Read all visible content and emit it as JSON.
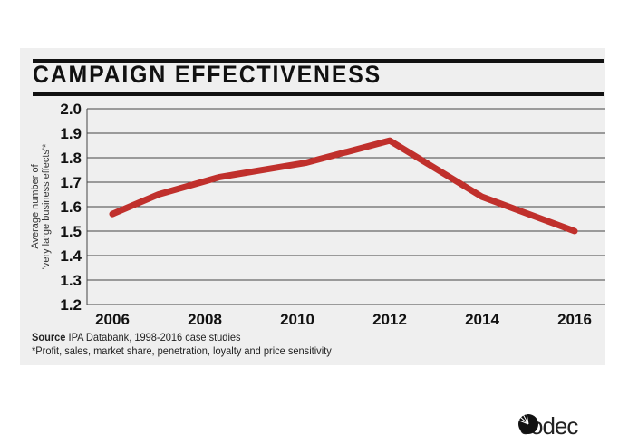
{
  "chart_data": {
    "type": "line",
    "title": "CAMPAIGN EFFECTIVENESS",
    "ylabel": [
      "Average number of",
      "'very large business effects'*"
    ],
    "xlabel": "",
    "x_ticks": [
      "2006",
      "2008",
      "2010",
      "2012",
      "2014",
      "2016"
    ],
    "y_ticks": [
      "2.0",
      "1.9",
      "1.8",
      "1.7",
      "1.6",
      "1.5",
      "1.4",
      "1.3",
      "1.2"
    ],
    "ylim": [
      1.2,
      2.0
    ],
    "xlim": [
      2006,
      2016
    ],
    "grid": "horizontal",
    "line_color": "#c0302c",
    "points": [
      [
        2006,
        1.57
      ],
      [
        2007,
        1.65
      ],
      [
        2008.3,
        1.72
      ],
      [
        2010.2,
        1.78
      ],
      [
        2012,
        1.87
      ],
      [
        2014,
        1.64
      ],
      [
        2016,
        1.5
      ]
    ]
  },
  "source_label": "Source",
  "source_text": " IPA Databank, 1998-2016 case studies",
  "footnote": "*Profit, sales, market share, penetration, loyalty and price sensitivity",
  "logo": {
    "text": "codec"
  }
}
